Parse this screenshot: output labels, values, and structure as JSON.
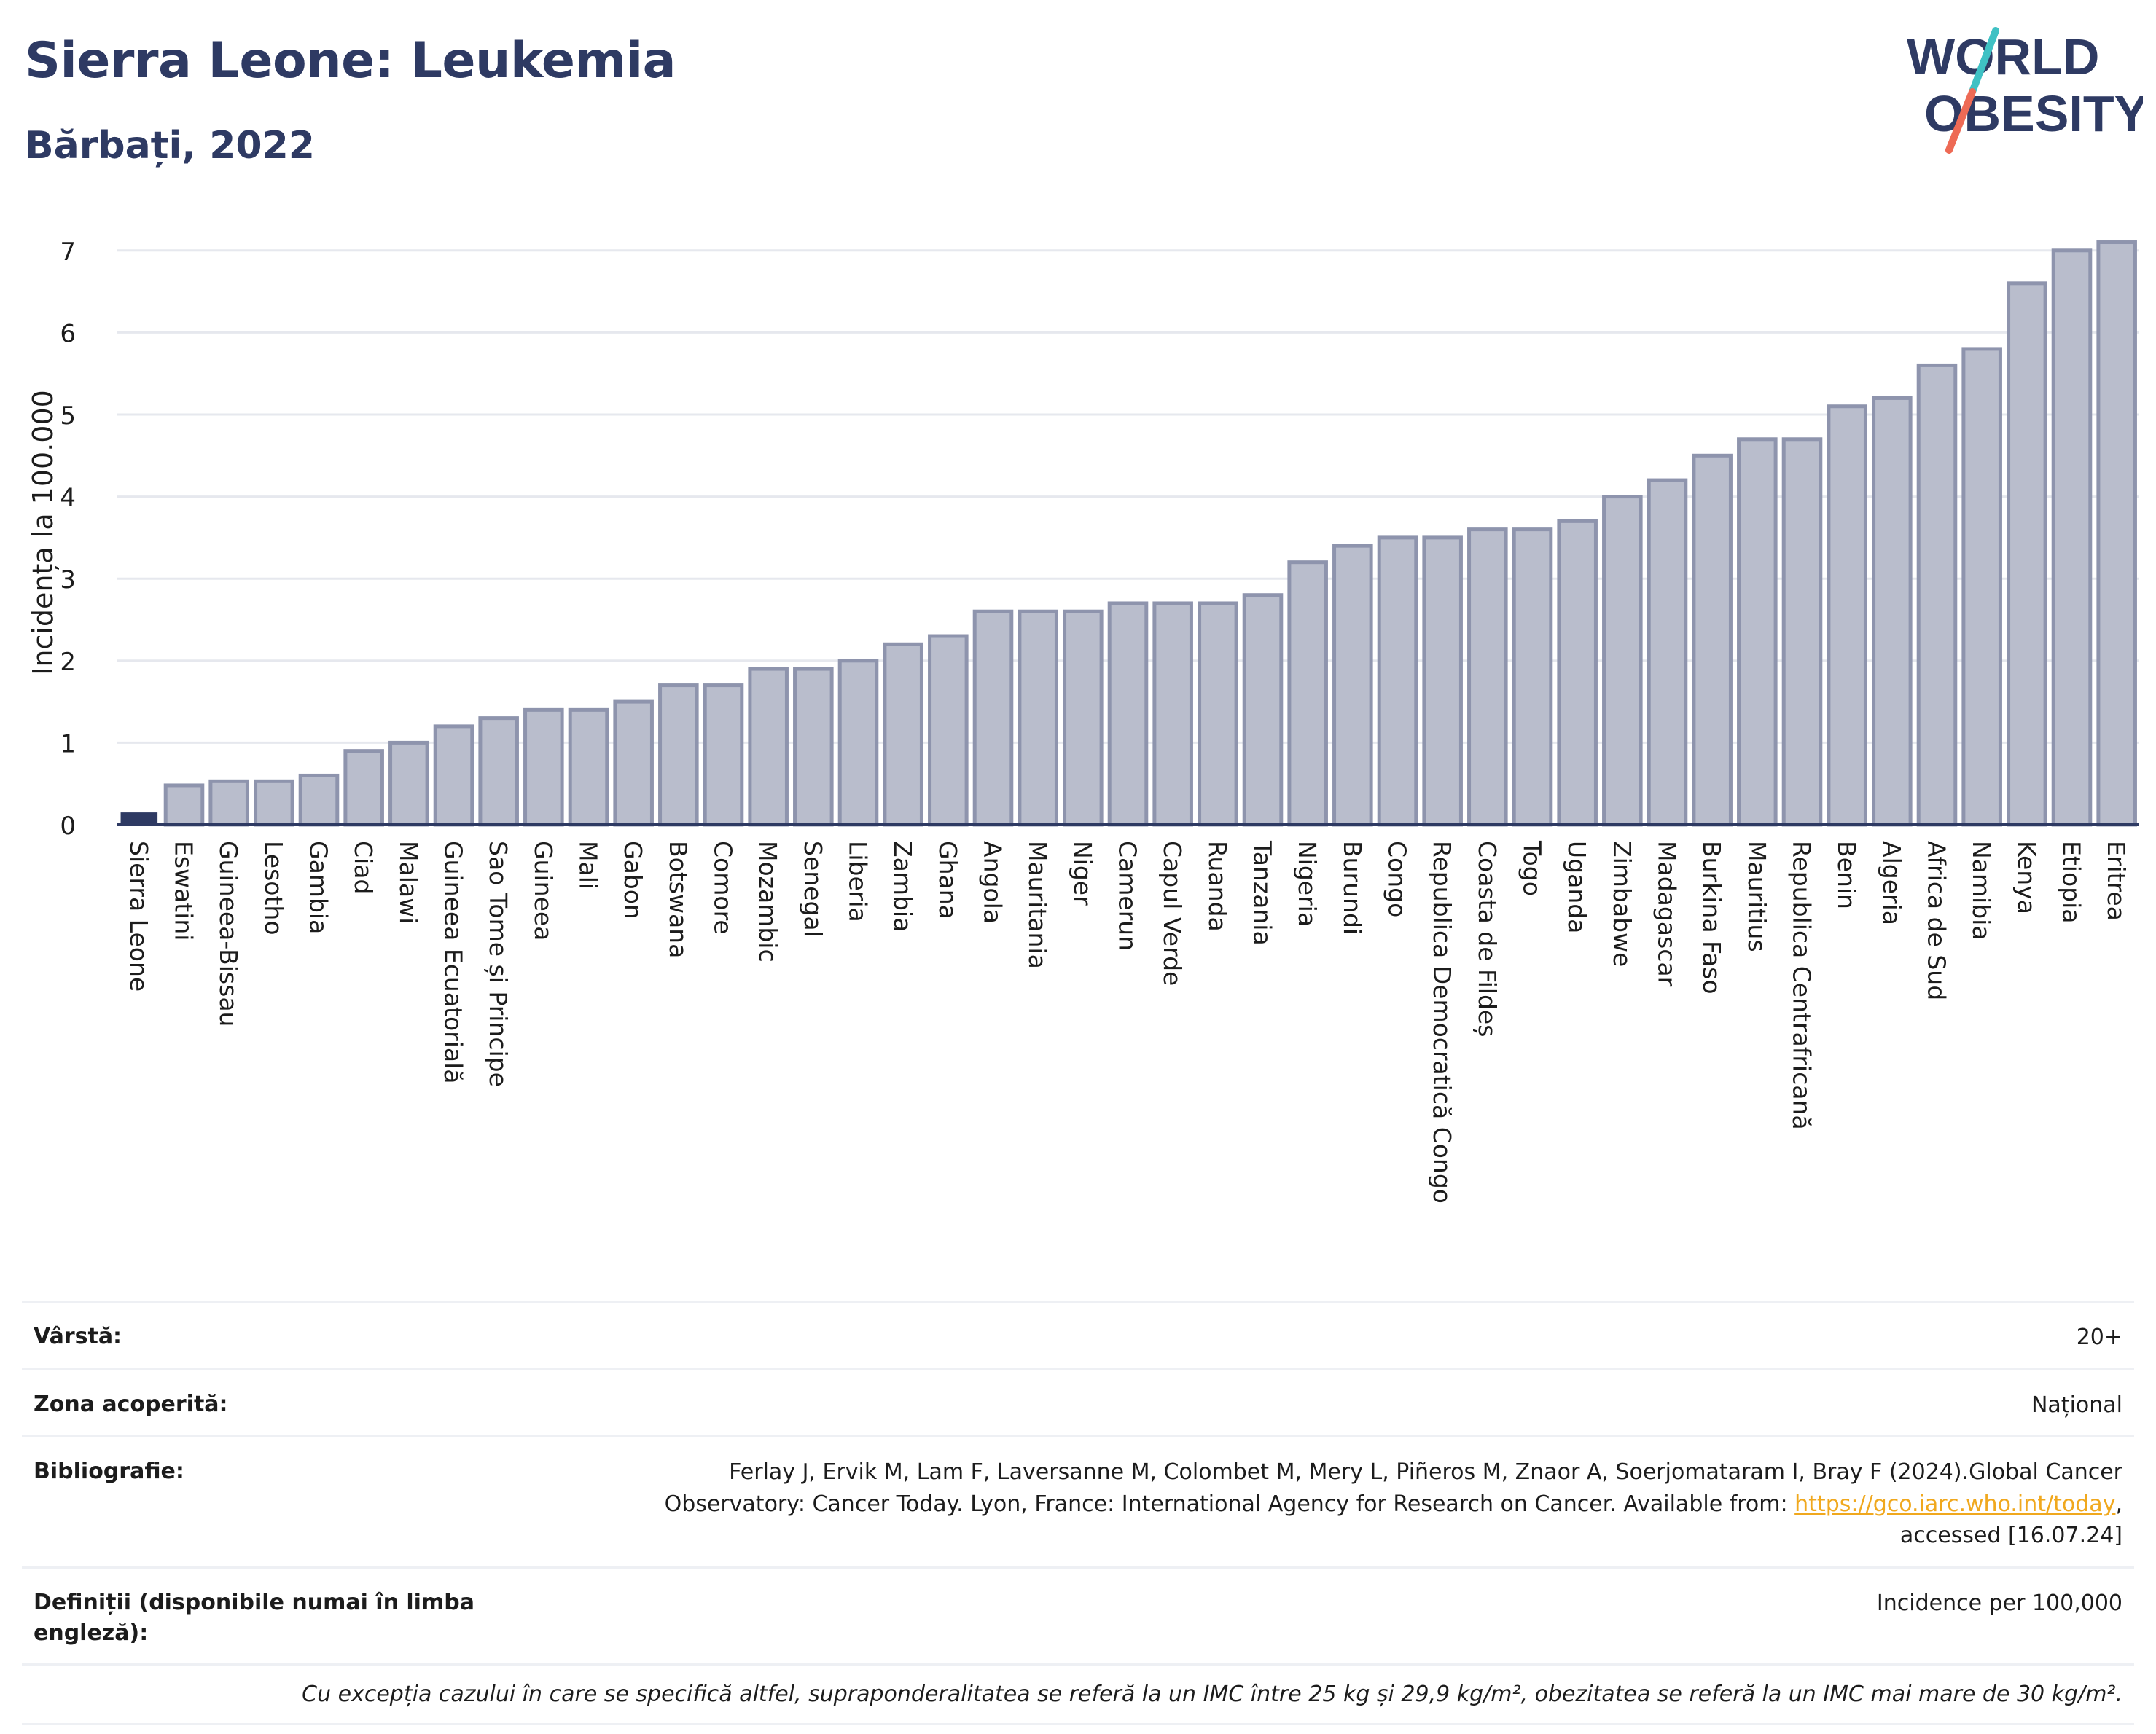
{
  "header": {
    "title": "Sierra Leone: Leukemia",
    "subtitle": "Bărbați, 2022"
  },
  "logo": {
    "line1": "WORLD",
    "line2": "OBESITY",
    "colors": {
      "text": "#2e3a63",
      "slash_top": "#3fc1c4",
      "slash_bottom": "#ee6a55"
    }
  },
  "colors": {
    "highlight_bar": "#2e3a63",
    "other_bar_fill": "#b9bdcc",
    "other_bar_stroke": "#8e94ad",
    "grid": "#e6e8ee",
    "axis": "#2e3a63"
  },
  "chart_data": {
    "type": "bar",
    "ylabel": "Incidența la 100.000",
    "xlabel": "",
    "ylim": [
      0,
      7.3
    ],
    "yticks": [
      0,
      1,
      2,
      3,
      4,
      5,
      6,
      7
    ],
    "grid": true,
    "highlight": "Sierra Leone",
    "categories": [
      "Sierra Leone",
      "Eswatini",
      "Guineea-Bissau",
      "Lesotho",
      "Gambia",
      "Ciad",
      "Malawi",
      "Guineea Ecuatorială",
      "Sao Tome și Principe",
      "Guineea",
      "Mali",
      "Gabon",
      "Botswana",
      "Comore",
      "Mozambic",
      "Senegal",
      "Liberia",
      "Zambia",
      "Ghana",
      "Angola",
      "Mauritania",
      "Niger",
      "Camerun",
      "Capul Verde",
      "Ruanda",
      "Tanzania",
      "Nigeria",
      "Burundi",
      "Congo",
      "Republica Democratică Congo",
      "Coasta de Fildeș",
      "Togo",
      "Uganda",
      "Zimbabwe",
      "Madagascar",
      "Burkina Faso",
      "Mauritius",
      "Republica Centrafricană",
      "Benin",
      "Algeria",
      "Africa de Sud",
      "Namibia",
      "Kenya",
      "Etiopia",
      "Eritrea"
    ],
    "values": [
      0.15,
      0.48,
      0.53,
      0.53,
      0.6,
      0.9,
      1.0,
      1.2,
      1.3,
      1.4,
      1.4,
      1.5,
      1.7,
      1.7,
      1.9,
      1.9,
      2.0,
      2.2,
      2.3,
      2.6,
      2.6,
      2.6,
      2.7,
      2.7,
      2.7,
      2.8,
      3.2,
      3.4,
      3.5,
      3.5,
      3.6,
      3.6,
      3.7,
      4.0,
      4.2,
      4.5,
      4.7,
      4.7,
      5.1,
      5.2,
      5.6,
      5.8,
      6.6,
      7.0,
      7.1
    ]
  },
  "info": {
    "age_label": "Vârstă:",
    "age_value": "20+",
    "zone_label": "Zona acoperită:",
    "zone_value": "Național",
    "biblio_label": "Bibliografie:",
    "biblio_text": "Ferlay J, Ervik M, Lam F, Laversanne M, Colombet M, Mery L, Piñeros M, Znaor A, Soerjomataram I, Bray F (2024).Global Cancer Observatory: Cancer Today. Lyon, France: International Agency for Research on Cancer. Available from: ",
    "biblio_link": "https://gco.iarc.who.int/today",
    "biblio_after": ", accessed [16.07.24]",
    "def_label": "Definiții (disponibile numai în limba engleză):",
    "def_value": "Incidence per 100,000",
    "note": "Cu excepția cazului în care se specifică altfel, supraponderalitatea se referă la un IMC între 25 kg și 29,9 kg/m², obezitatea se referă la un IMC mai mare de 30 kg/m²."
  }
}
